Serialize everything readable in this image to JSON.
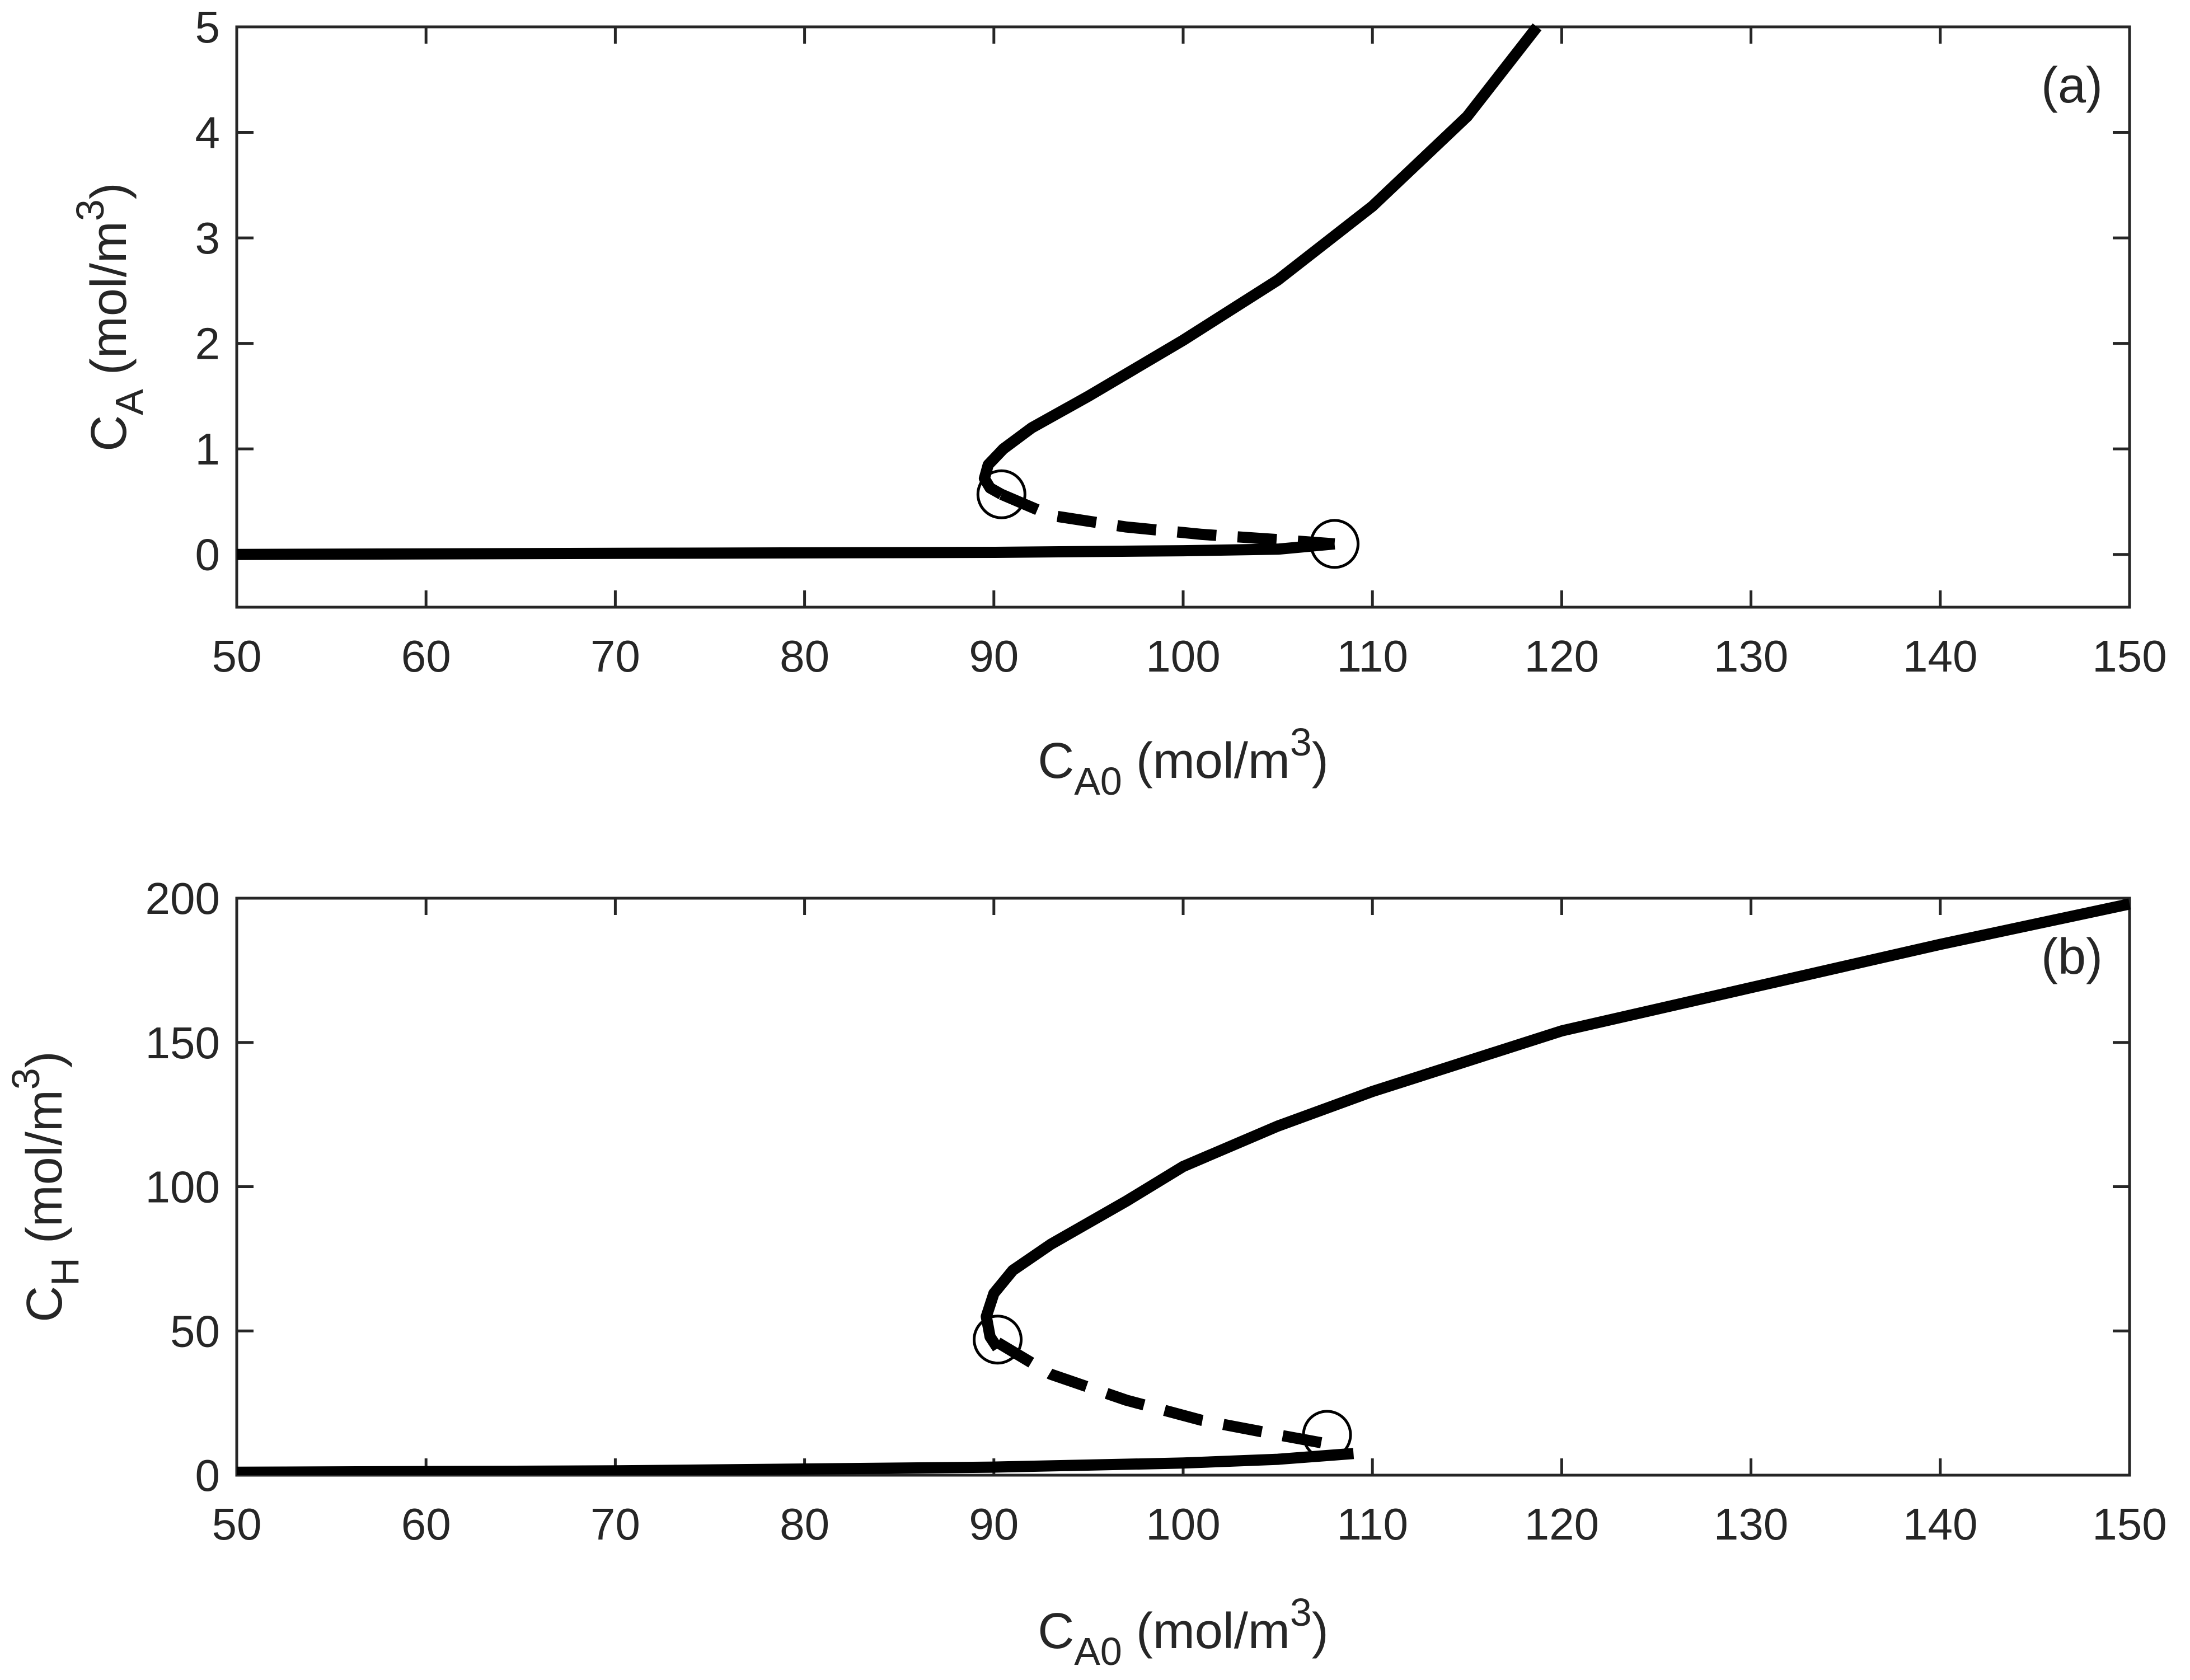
{
  "chart_data": [
    {
      "type": "line",
      "panel_label": "(a)",
      "xlabel": {
        "main": "C",
        "sub": "A0",
        "unit_pre": " (mol/m",
        "sup": "3",
        "unit_post": ")"
      },
      "ylabel": {
        "main": "C",
        "sub": "A",
        "unit_pre": " (mol/m",
        "sup": "3",
        "unit_post": ")"
      },
      "xlim": [
        50,
        150
      ],
      "ylim": [
        -0.5,
        5
      ],
      "xticks": [
        50,
        60,
        70,
        80,
        90,
        100,
        110,
        120,
        130,
        140,
        150
      ],
      "xtick_labels": [
        "50",
        "60",
        "70",
        "80",
        "90",
        "100",
        "110",
        "120",
        "130",
        "140",
        "150"
      ],
      "yticks": [
        0,
        1,
        2,
        3,
        4,
        5
      ],
      "ytick_labels": [
        "0",
        "1",
        "2",
        "3",
        "4",
        "5"
      ],
      "grid": false,
      "series": [
        {
          "name": "upper stable branch",
          "style": "solid",
          "points": [
            [
              90.4,
              0.57
            ],
            [
              89.8,
              0.63
            ],
            [
              89.5,
              0.72
            ],
            [
              89.7,
              0.85
            ],
            [
              90.5,
              1.0
            ],
            [
              92,
              1.2
            ],
            [
              95,
              1.5
            ],
            [
              100,
              2.03
            ],
            [
              105,
              2.6
            ],
            [
              110,
              3.3
            ],
            [
              115,
              4.15
            ],
            [
              118.7,
              5.0
            ]
          ]
        },
        {
          "name": "unstable branch",
          "style": "dashed",
          "points": [
            [
              90.4,
              0.57
            ],
            [
              93,
              0.37
            ],
            [
              97,
              0.26
            ],
            [
              101,
              0.19
            ],
            [
              105,
              0.14
            ],
            [
              108,
              0.1
            ]
          ]
        },
        {
          "name": "lower stable branch",
          "style": "solid",
          "points": [
            [
              50,
              0.0
            ],
            [
              70,
              0.01
            ],
            [
              90,
              0.02
            ],
            [
              100,
              0.035
            ],
            [
              105,
              0.05
            ],
            [
              108,
              0.1
            ]
          ]
        }
      ],
      "markers": [
        {
          "name": "lower turning point",
          "x": 90.4,
          "y": 0.57,
          "shape": "circle"
        },
        {
          "name": "upper turning point",
          "x": 108.0,
          "y": 0.1,
          "shape": "circle"
        }
      ]
    },
    {
      "type": "line",
      "panel_label": "(b)",
      "xlabel": {
        "main": "C",
        "sub": "A0",
        "unit_pre": " (mol/m",
        "sup": "3",
        "unit_post": ")"
      },
      "ylabel": {
        "main": "C",
        "sub": "H",
        "unit_pre": " (mol/m",
        "sup": "3",
        "unit_post": ")"
      },
      "xlim": [
        50,
        150
      ],
      "ylim": [
        0,
        200
      ],
      "xticks": [
        50,
        60,
        70,
        80,
        90,
        100,
        110,
        120,
        130,
        140,
        150
      ],
      "xtick_labels": [
        "50",
        "60",
        "70",
        "80",
        "90",
        "100",
        "110",
        "120",
        "130",
        "140",
        "150"
      ],
      "yticks": [
        0,
        50,
        100,
        150,
        200
      ],
      "ytick_labels": [
        "0",
        "50",
        "100",
        "150",
        "200"
      ],
      "grid": false,
      "series": [
        {
          "name": "upper stable branch",
          "style": "solid",
          "points": [
            [
              90.2,
              44
            ],
            [
              89.8,
              48
            ],
            [
              89.6,
              55
            ],
            [
              90,
              63
            ],
            [
              91,
              71
            ],
            [
              93,
              80
            ],
            [
              97,
              95
            ],
            [
              100,
              107
            ],
            [
              105,
              121
            ],
            [
              110,
              133
            ],
            [
              120,
              154
            ],
            [
              130,
              169
            ],
            [
              140,
              184
            ],
            [
              150,
              198
            ]
          ]
        },
        {
          "name": "unstable branch",
          "style": "dashed",
          "points": [
            [
              90.2,
              46
            ],
            [
              93,
              35
            ],
            [
              97,
              26
            ],
            [
              101,
              19
            ],
            [
              105,
              14
            ],
            [
              107.5,
              11
            ]
          ]
        },
        {
          "name": "lower stable branch",
          "style": "solid",
          "points": [
            [
              50,
              1.0
            ],
            [
              70,
              1.5
            ],
            [
              90,
              2.8
            ],
            [
              100,
              4.2
            ],
            [
              105,
              5.5
            ],
            [
              108,
              7
            ],
            [
              109,
              7.5
            ]
          ]
        }
      ],
      "markers": [
        {
          "name": "lower turning point",
          "x": 90.2,
          "y": 47,
          "shape": "circle"
        },
        {
          "name": "upper turning point",
          "x": 107.6,
          "y": 14,
          "shape": "circle"
        }
      ]
    }
  ]
}
